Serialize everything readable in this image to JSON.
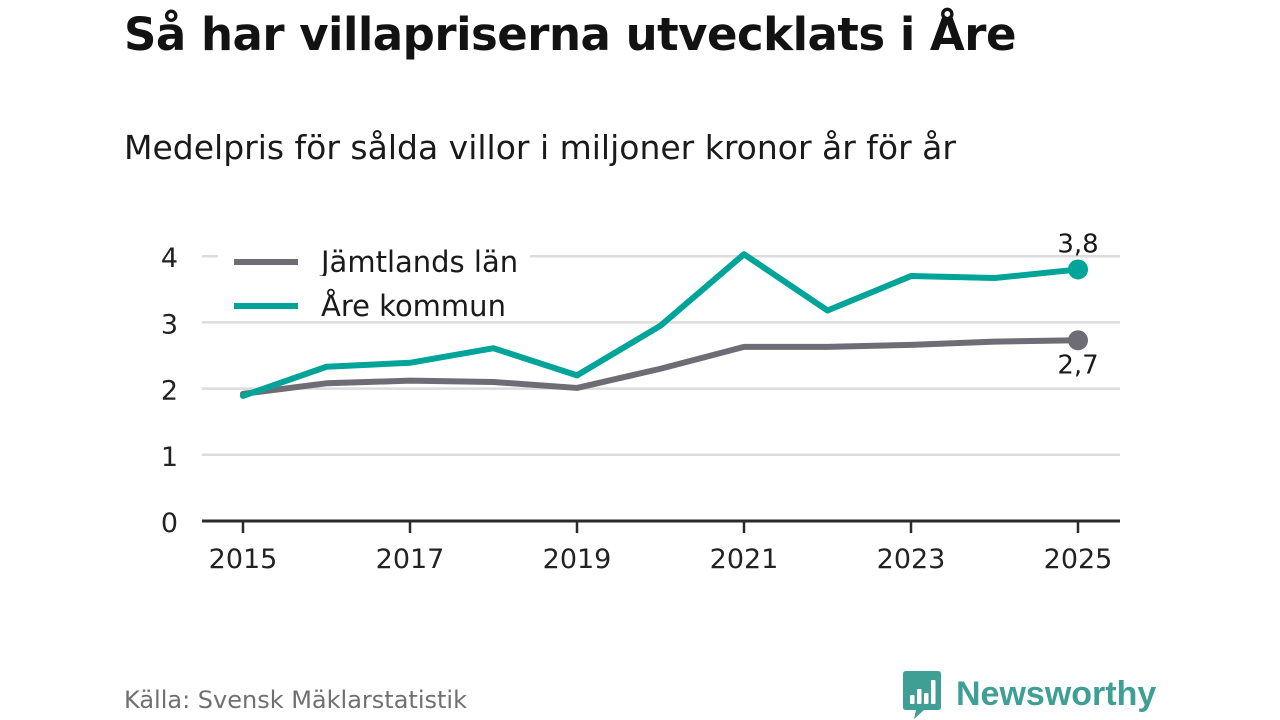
{
  "chart_data": {
    "type": "line",
    "title": "Så har villapriserna utvecklats i Åre",
    "subtitle": "Medelpris för sålda villor i miljoner kronor år för år",
    "x": [
      2015,
      2016,
      2017,
      2018,
      2019,
      2020,
      2021,
      2022,
      2023,
      2024,
      2025
    ],
    "x_ticks": [
      "2015",
      "2017",
      "2019",
      "2021",
      "2023",
      "2025"
    ],
    "y_ticks": [
      "0",
      "1",
      "2",
      "3",
      "4"
    ],
    "ylim": [
      0,
      4.2
    ],
    "xlabel": "",
    "ylabel": "",
    "grid": true,
    "legend_position": "top-left",
    "series": [
      {
        "name": "Jämtlands län",
        "color": "#6e6d75",
        "values": [
          1.92,
          2.08,
          2.12,
          2.1,
          2.01,
          2.3,
          2.63,
          2.63,
          2.66,
          2.71,
          2.73
        ],
        "end_label": "2,7"
      },
      {
        "name": "Åre kommun",
        "color": "#00a499",
        "values": [
          1.89,
          2.33,
          2.39,
          2.61,
          2.2,
          2.95,
          4.03,
          3.18,
          3.7,
          3.67,
          3.8
        ],
        "end_label": "3,8"
      }
    ]
  },
  "source": "Källa: Svensk Mäklarstatistik",
  "brand": {
    "name": "Newsworthy",
    "icon": "bar-chart-speech-bubble-icon",
    "color": "#3f9f95"
  }
}
